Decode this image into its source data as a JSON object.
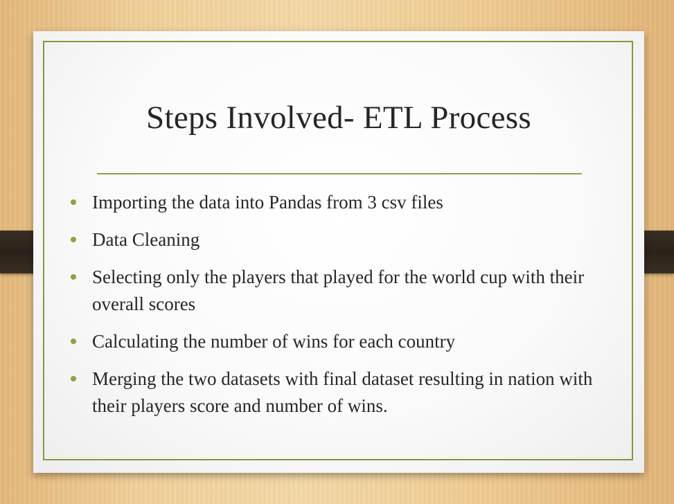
{
  "slide": {
    "title": "Steps Involved- ETL Process",
    "accent_color": "#8aa33e",
    "bullets": [
      "Importing the data into Pandas from 3 csv files",
      "Data Cleaning",
      "Selecting only the players that played for the world cup with their overall scores",
      "Calculating the number of wins for each country",
      "Merging the two datasets with final dataset resulting in nation with their players score and number of wins."
    ]
  }
}
